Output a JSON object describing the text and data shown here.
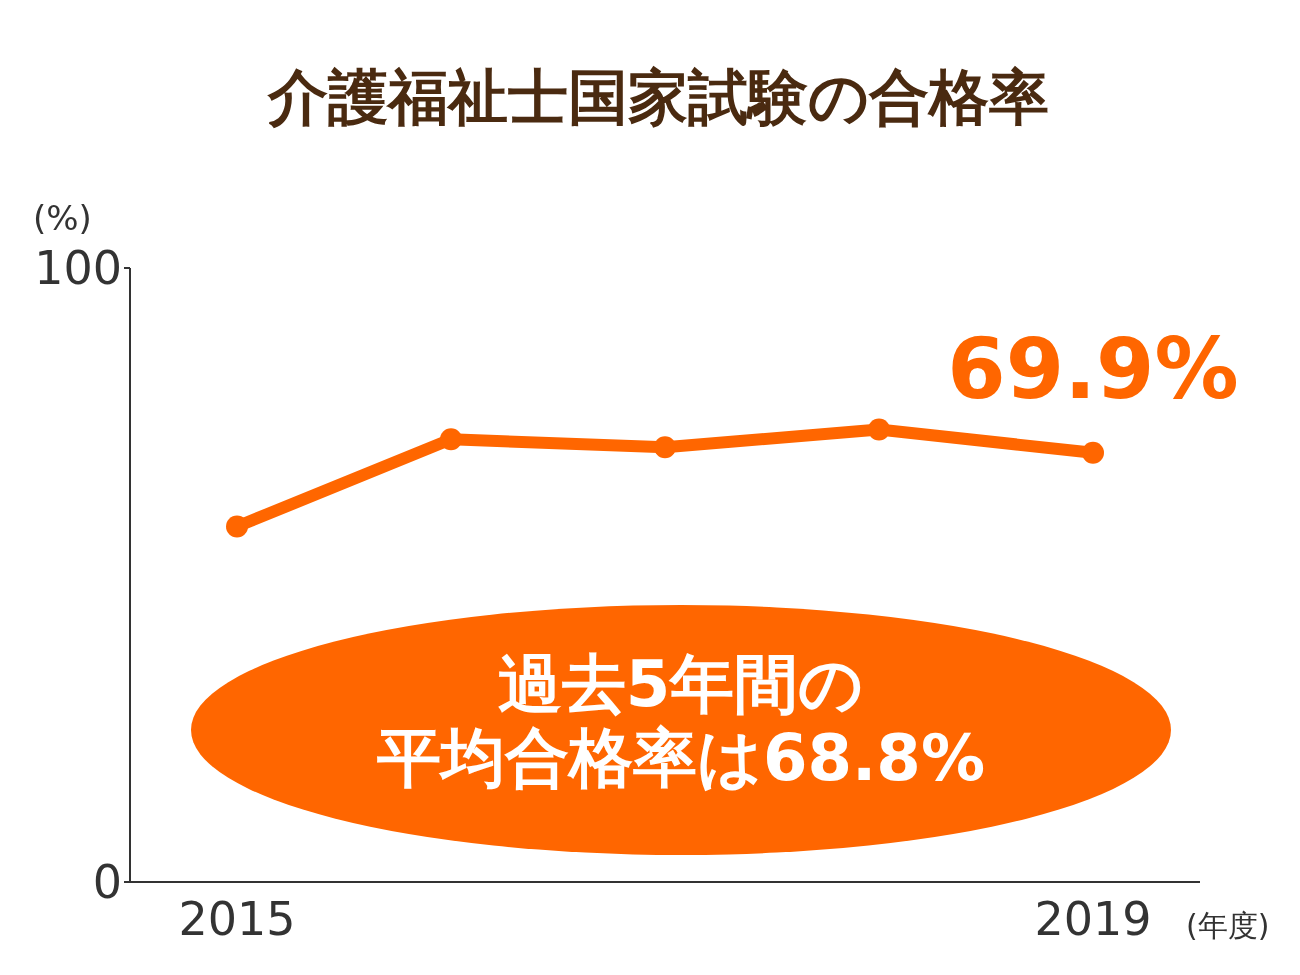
{
  "chart_data": {
    "type": "line",
    "title": "介護福祉士国家試験の合格率",
    "ylabel": "(%)",
    "xlabel": "(年度)",
    "categories": [
      "2015",
      null,
      null,
      null,
      "2019"
    ],
    "series": [
      {
        "color": "#ff6600",
        "values": [
          57.9,
          72.1,
          70.8,
          73.7,
          69.9
        ],
        "value_labels": [
          null,
          null,
          null,
          null,
          "69.9%"
        ]
      }
    ],
    "ylim": [
      0,
      100
    ],
    "yticks": [
      0,
      100
    ],
    "marker": "circle",
    "line_style": "solid",
    "annotations": [
      "過去5年間の",
      "平均合格率は68.8%"
    ]
  }
}
